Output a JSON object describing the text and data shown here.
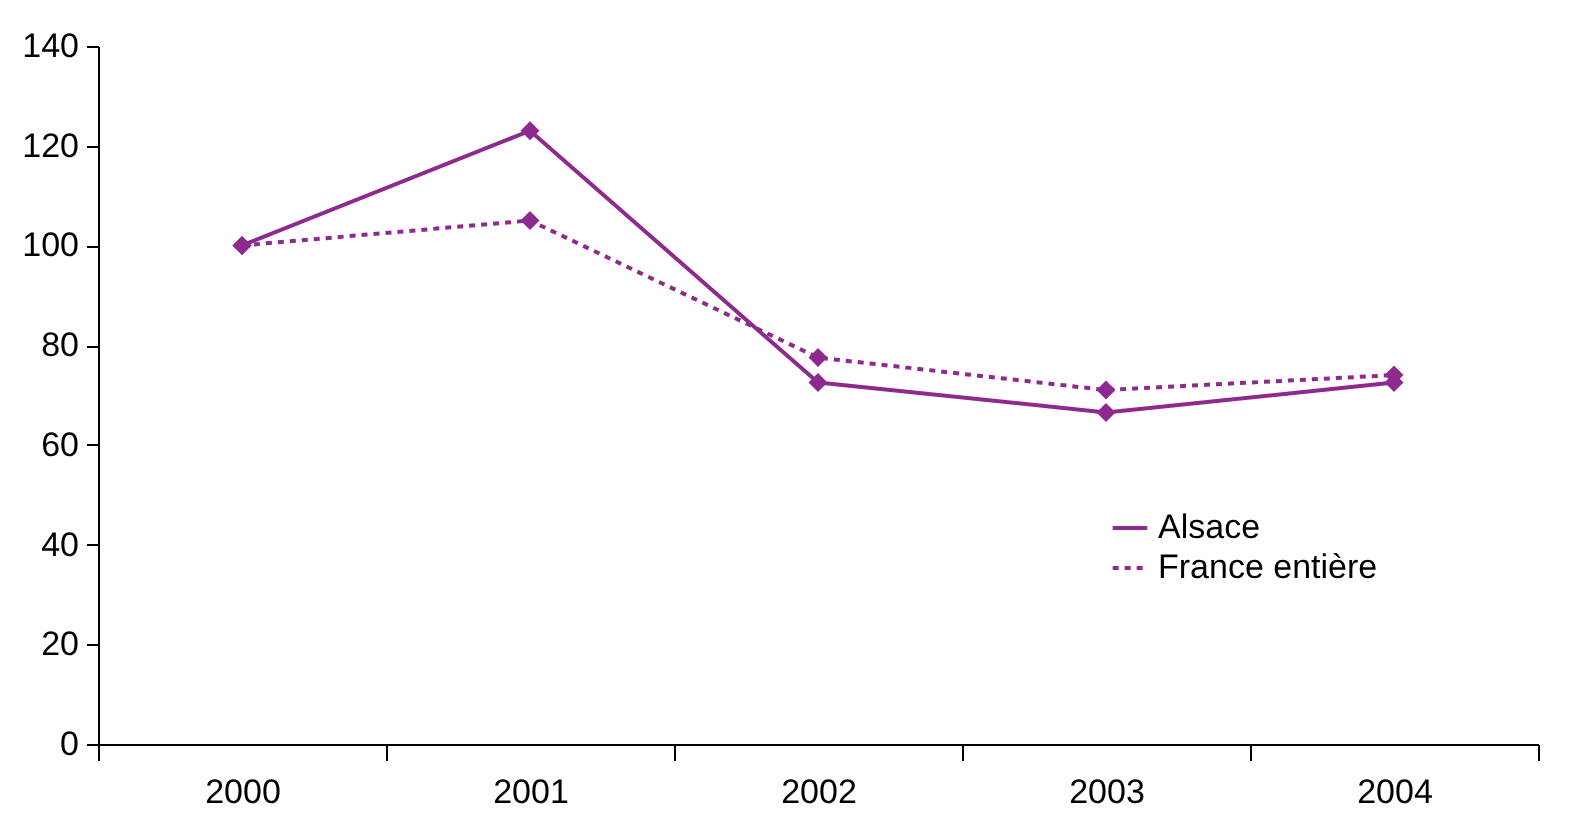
{
  "chart_data": {
    "type": "line",
    "categories": [
      "2000",
      "2001",
      "2002",
      "2003",
      "2004"
    ],
    "series": [
      {
        "name": "Alsace",
        "color": "#8e2a8e",
        "values": [
          100,
          123,
          72.5,
          66.5,
          72.5
        ],
        "line_style": "solid"
      },
      {
        "name": "France entière",
        "color": "#8e2a8e",
        "values": [
          100,
          105,
          77.5,
          71,
          74
        ],
        "line_style": "dotted"
      }
    ],
    "ylim": [
      0,
      140
    ],
    "yticks": [
      0,
      20,
      40,
      60,
      80,
      100,
      120,
      140
    ],
    "grid": false,
    "legend": "bottom right",
    "marker": "diamond"
  }
}
